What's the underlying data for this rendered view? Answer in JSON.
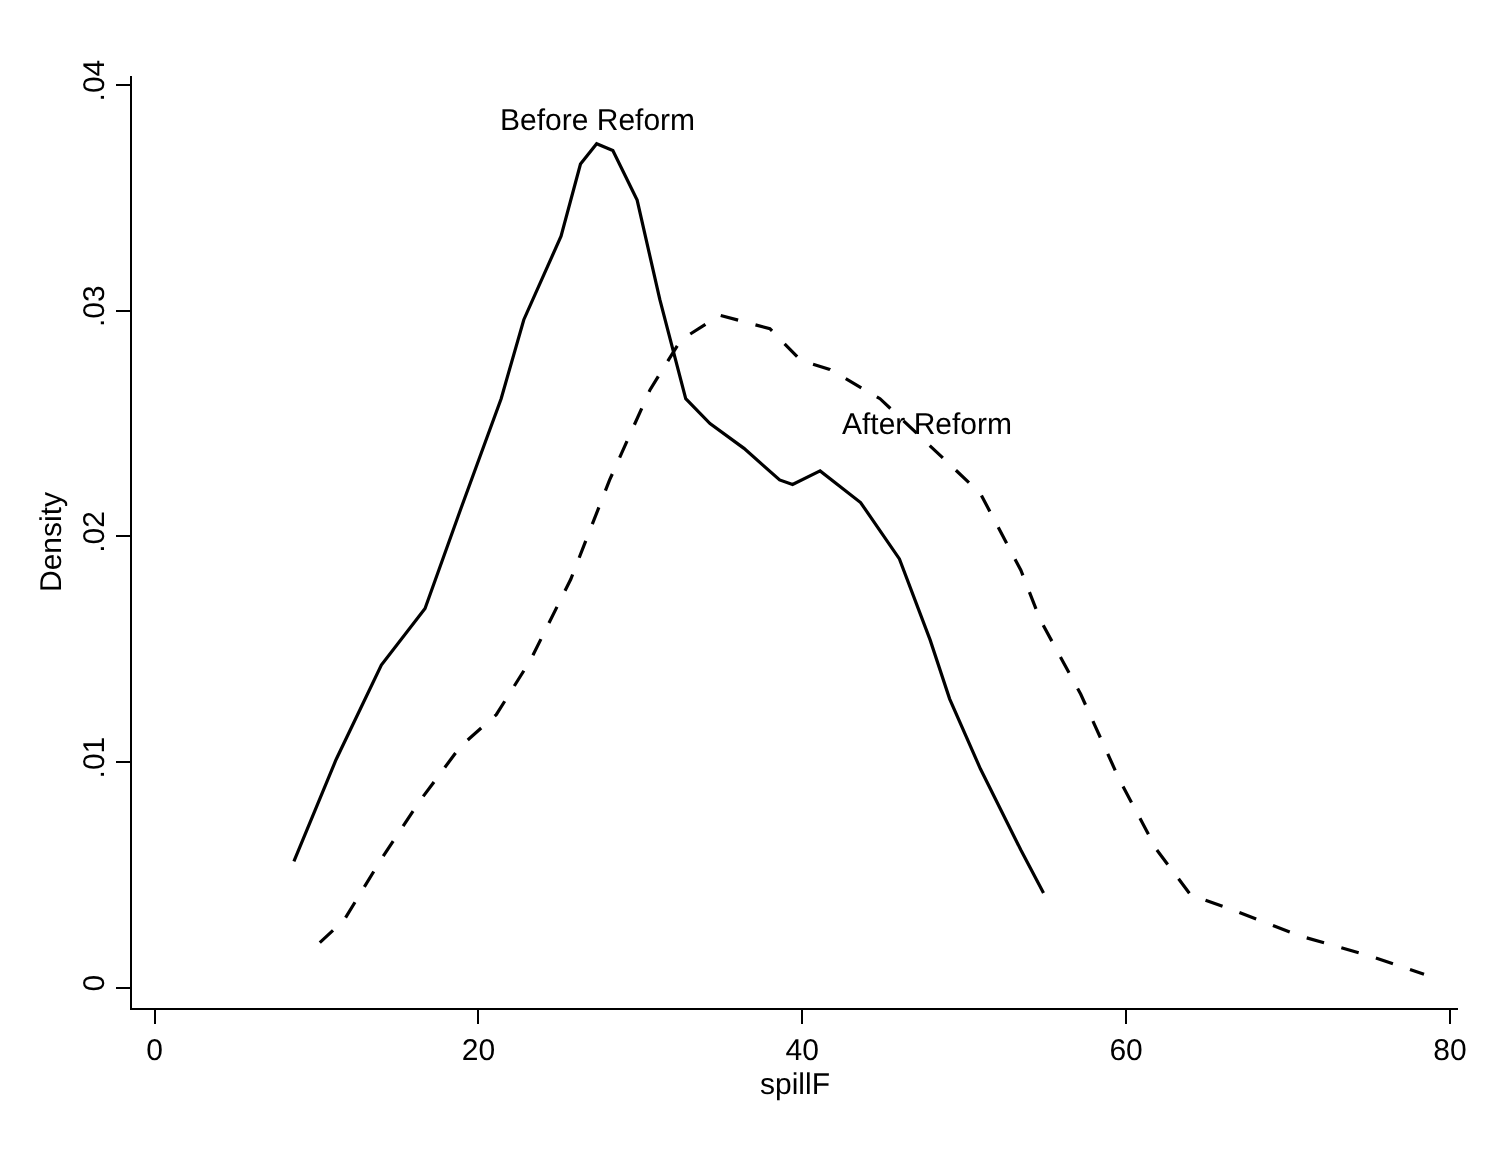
{
  "chart_data": {
    "type": "line",
    "xlabel": "spillF",
    "ylabel": "Density",
    "xlim": [
      -1.4,
      80.5
    ],
    "xticks": [
      0,
      20,
      40,
      60,
      80
    ],
    "ylim": [
      -0.0009,
      0.0404
    ],
    "yticks": [
      0,
      {
        "value": 0.01,
        "label": ".01"
      },
      {
        "value": 0.02,
        "label": ".02"
      },
      {
        "value": 0.03,
        "label": ".03"
      },
      {
        "value": 0.04,
        "label": ".04"
      }
    ],
    "grid": false,
    "legend": false,
    "marker": "none",
    "series": [
      {
        "name": "Before Reform",
        "color": "#000000",
        "line_style": "solid",
        "x": [
          8.6,
          11.2,
          14,
          16.7,
          18.9,
          21.4,
          22.8,
          25.1,
          26.3,
          27.3,
          28.3,
          29.8,
          31.2,
          32.8,
          34.3,
          36.4,
          38.6,
          39.4,
          41.1,
          43.6,
          46,
          47.9,
          49.1,
          51,
          53.5,
          54.9
        ],
        "values": [
          0.0056,
          0.0101,
          0.0143,
          0.0168,
          0.0212,
          0.0261,
          0.0296,
          0.0333,
          0.0365,
          0.0374,
          0.0371,
          0.0349,
          0.0305,
          0.0261,
          0.025,
          0.0239,
          0.0225,
          0.0223,
          0.0229,
          0.0215,
          0.019,
          0.0154,
          0.0128,
          0.0097,
          0.0061,
          0.0042
        ]
      },
      {
        "name": "After Reform",
        "color": "#000000",
        "line_style": "dashed",
        "x": [
          10.2,
          11.7,
          14,
          16.4,
          18.9,
          21.1,
          23.2,
          25.7,
          28.1,
          30.6,
          32.5,
          34.9,
          38,
          39.9,
          41.7,
          44.8,
          48.5,
          51,
          53.5,
          54.7,
          57.2,
          59.6,
          61.9,
          64,
          66.4,
          70.7,
          75.1,
          78.4
        ],
        "values": [
          0.002,
          0.003,
          0.0057,
          0.0083,
          0.0107,
          0.0121,
          0.0145,
          0.0181,
          0.0225,
          0.0265,
          0.0287,
          0.0298,
          0.0292,
          0.0278,
          0.0274,
          0.0261,
          0.0236,
          0.0219,
          0.0185,
          0.0163,
          0.013,
          0.0092,
          0.0061,
          0.0041,
          0.0035,
          0.0023,
          0.0014,
          0.0006
        ]
      }
    ]
  }
}
